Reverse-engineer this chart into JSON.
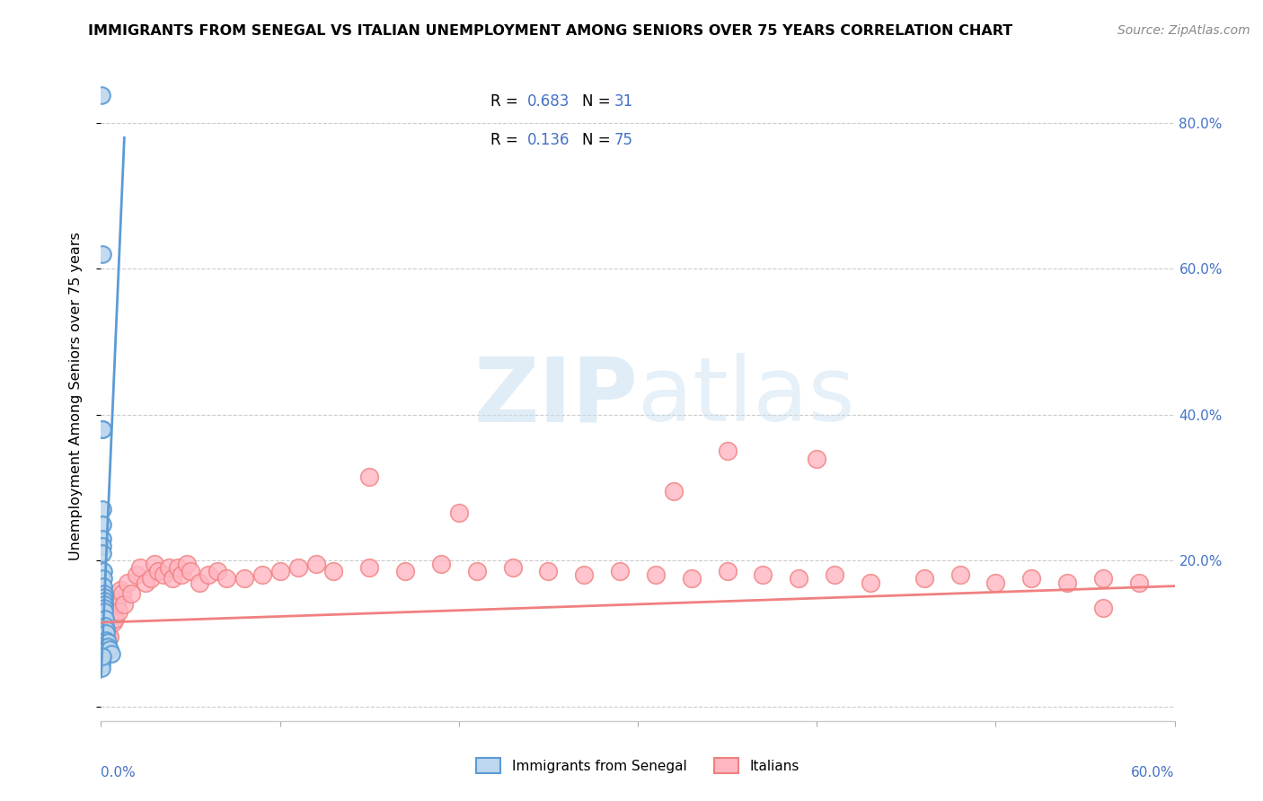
{
  "title": "IMMIGRANTS FROM SENEGAL VS ITALIAN UNEMPLOYMENT AMONG SENIORS OVER 75 YEARS CORRELATION CHART",
  "source": "Source: ZipAtlas.com",
  "ylabel": "Unemployment Among Seniors over 75 years",
  "xlim": [
    0.0,
    0.6
  ],
  "ylim": [
    -0.02,
    0.87
  ],
  "senegal_color": "#5b9bd5",
  "senegal_fill": "#bdd7ee",
  "italian_color": "#f08080",
  "italian_fill": "#ffb6c1",
  "senegal_x": [
    0.0005,
    0.0008,
    0.001,
    0.001,
    0.001,
    0.001,
    0.001,
    0.001,
    0.001,
    0.0015,
    0.0015,
    0.0015,
    0.002,
    0.002,
    0.002,
    0.002,
    0.002,
    0.002,
    0.0025,
    0.0025,
    0.003,
    0.003,
    0.003,
    0.004,
    0.004,
    0.005,
    0.006,
    0.0005,
    0.0005,
    0.0005,
    0.001
  ],
  "senegal_y": [
    0.838,
    0.62,
    0.38,
    0.38,
    0.27,
    0.25,
    0.23,
    0.22,
    0.21,
    0.185,
    0.175,
    0.165,
    0.155,
    0.15,
    0.145,
    0.14,
    0.135,
    0.13,
    0.12,
    0.11,
    0.105,
    0.1,
    0.09,
    0.088,
    0.082,
    0.078,
    0.072,
    0.063,
    0.058,
    0.052,
    0.068
  ],
  "italian_x": [
    0.001,
    0.001,
    0.001,
    0.0015,
    0.0015,
    0.002,
    0.002,
    0.0025,
    0.003,
    0.003,
    0.004,
    0.004,
    0.005,
    0.005,
    0.006,
    0.007,
    0.008,
    0.009,
    0.01,
    0.011,
    0.012,
    0.013,
    0.015,
    0.017,
    0.02,
    0.022,
    0.025,
    0.028,
    0.03,
    0.032,
    0.035,
    0.038,
    0.04,
    0.043,
    0.045,
    0.048,
    0.05,
    0.055,
    0.06,
    0.065,
    0.07,
    0.08,
    0.09,
    0.1,
    0.11,
    0.12,
    0.13,
    0.15,
    0.17,
    0.19,
    0.21,
    0.23,
    0.25,
    0.27,
    0.29,
    0.31,
    0.33,
    0.35,
    0.37,
    0.39,
    0.41,
    0.43,
    0.46,
    0.48,
    0.5,
    0.52,
    0.54,
    0.56,
    0.58,
    0.35,
    0.32,
    0.15,
    0.2,
    0.4,
    0.56
  ],
  "italian_y": [
    0.115,
    0.105,
    0.095,
    0.12,
    0.09,
    0.115,
    0.09,
    0.1,
    0.13,
    0.105,
    0.115,
    0.1,
    0.125,
    0.095,
    0.13,
    0.115,
    0.12,
    0.14,
    0.13,
    0.16,
    0.155,
    0.14,
    0.17,
    0.155,
    0.18,
    0.19,
    0.17,
    0.175,
    0.195,
    0.185,
    0.18,
    0.19,
    0.175,
    0.19,
    0.18,
    0.195,
    0.185,
    0.17,
    0.18,
    0.185,
    0.175,
    0.175,
    0.18,
    0.185,
    0.19,
    0.195,
    0.185,
    0.19,
    0.185,
    0.195,
    0.185,
    0.19,
    0.185,
    0.18,
    0.185,
    0.18,
    0.175,
    0.185,
    0.18,
    0.175,
    0.18,
    0.17,
    0.175,
    0.18,
    0.17,
    0.175,
    0.17,
    0.175,
    0.17,
    0.35,
    0.295,
    0.315,
    0.265,
    0.34,
    0.135
  ],
  "senegal_trendline_x": [
    0.0,
    0.013
  ],
  "senegal_trendline_y": [
    0.04,
    0.78
  ],
  "italian_trendline_x": [
    0.0,
    0.6
  ],
  "italian_trendline_y": [
    0.115,
    0.165
  ]
}
